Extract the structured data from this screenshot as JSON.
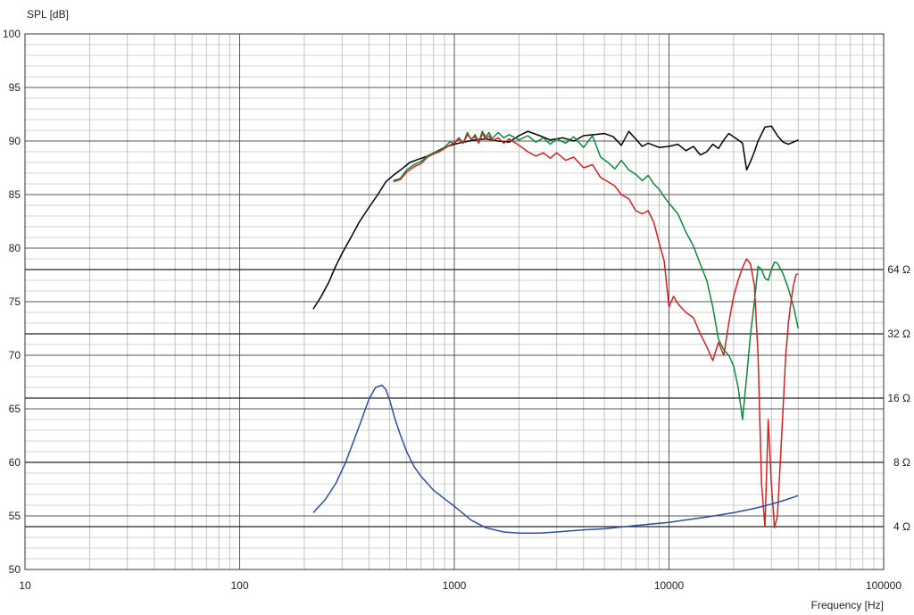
{
  "chart_data": {
    "type": "line",
    "ylabel": "SPL [dB]",
    "xlabel": "Frequency [Hz]",
    "x_scale": "log",
    "xlim": [
      10,
      100000
    ],
    "ylim": [
      50,
      100
    ],
    "x_ticks": [
      {
        "value": 10,
        "label": "10"
      },
      {
        "value": 100,
        "label": "100"
      },
      {
        "value": 1000,
        "label": "1000"
      },
      {
        "value": 10000,
        "label": "10000"
      },
      {
        "value": 100000,
        "label": "100000"
      }
    ],
    "y_ticks": [
      {
        "value": 50,
        "label": "50"
      },
      {
        "value": 55,
        "label": "55"
      },
      {
        "value": 60,
        "label": "60"
      },
      {
        "value": 65,
        "label": "65"
      },
      {
        "value": 70,
        "label": "70"
      },
      {
        "value": 75,
        "label": "75"
      },
      {
        "value": 80,
        "label": "80"
      },
      {
        "value": 85,
        "label": "85"
      },
      {
        "value": 90,
        "label": "90"
      },
      {
        "value": 95,
        "label": "95"
      },
      {
        "value": 100,
        "label": "100"
      }
    ],
    "impedance_scale": {
      "ticks": [
        {
          "value": 4,
          "label": "4 Ω"
        },
        {
          "value": 8,
          "label": "8 Ω"
        },
        {
          "value": 16,
          "label": "16 Ω"
        },
        {
          "value": 32,
          "label": "32 Ω"
        },
        {
          "value": 64,
          "label": "64 Ω"
        }
      ],
      "spl_at_4_ohm": 54,
      "db_per_octave": 6
    },
    "grid": true,
    "series": [
      {
        "color": "#000000",
        "x": [
          220,
          240,
          260,
          280,
          300,
          330,
          360,
          400,
          440,
          480,
          520,
          570,
          620,
          680,
          750,
          820,
          900,
          1000,
          1100,
          1250,
          1400,
          1600,
          1800,
          2000,
          2200,
          2500,
          2800,
          3200,
          3600,
          4000,
          4500,
          5000,
          5500,
          6000,
          6500,
          7000,
          7500,
          8000,
          9000,
          10000,
          11000,
          12000,
          13000,
          14000,
          15000,
          16000,
          17000,
          18000,
          19000,
          20000,
          21000,
          22000,
          23000,
          24000,
          25000,
          26000,
          28000,
          30000,
          32000,
          34000,
          36000,
          38000,
          40000
        ],
        "y": [
          74.3,
          75.5,
          76.8,
          78.3,
          79.5,
          81.0,
          82.4,
          83.8,
          85.0,
          86.2,
          86.8,
          87.4,
          88.0,
          88.3,
          88.6,
          89.0,
          89.4,
          89.7,
          89.9,
          90.1,
          90.2,
          90.0,
          89.9,
          90.5,
          90.9,
          90.5,
          90.1,
          90.3,
          90.0,
          90.5,
          90.6,
          90.7,
          90.4,
          89.6,
          90.9,
          90.2,
          89.5,
          89.8,
          89.4,
          89.5,
          89.7,
          89.1,
          89.5,
          88.7,
          89.0,
          89.7,
          89.3,
          90.1,
          90.7,
          90.4,
          90.1,
          89.8,
          87.3,
          88.1,
          89.0,
          90.0,
          91.3,
          91.4,
          90.5,
          89.9,
          89.7,
          89.9,
          90.1
        ]
      },
      {
        "color": "#0a8a3a",
        "x": [
          520,
          560,
          600,
          650,
          700,
          750,
          800,
          850,
          900,
          950,
          1000,
          1050,
          1100,
          1150,
          1200,
          1250,
          1300,
          1350,
          1400,
          1450,
          1500,
          1600,
          1700,
          1800,
          2000,
          2200,
          2400,
          2600,
          2800,
          3000,
          3300,
          3600,
          4000,
          4400,
          4800,
          5200,
          5600,
          6000,
          6500,
          7000,
          7500,
          8000,
          8500,
          9000,
          9500,
          10000,
          11000,
          12000,
          13000,
          14000,
          15000,
          16000,
          17000,
          18000,
          19000,
          20000,
          21000,
          22000,
          23000,
          24000,
          25000,
          26000,
          27000,
          28000,
          29000,
          30000,
          31000,
          32000,
          34000,
          36000,
          38000,
          40000
        ],
        "y": [
          86.3,
          86.5,
          87.3,
          87.8,
          88.1,
          88.6,
          88.9,
          89.1,
          89.4,
          89.9,
          89.8,
          90.3,
          89.8,
          90.8,
          90.1,
          90.6,
          89.9,
          90.9,
          90.4,
          90.8,
          90.2,
          90.8,
          90.3,
          90.6,
          90.1,
          90.5,
          89.9,
          90.3,
          89.7,
          90.2,
          89.8,
          90.4,
          89.4,
          90.5,
          88.5,
          88.0,
          87.4,
          88.2,
          87.3,
          86.9,
          86.3,
          86.8,
          86.0,
          85.5,
          84.8,
          84.2,
          83.2,
          81.5,
          80.2,
          78.5,
          77.0,
          74.5,
          71.5,
          70.5,
          70.0,
          69.0,
          67.0,
          64.0,
          68.0,
          72.0,
          75.0,
          78.3,
          78.0,
          77.2,
          77.0,
          78.0,
          78.7,
          78.6,
          77.6,
          76.2,
          74.6,
          72.5
        ]
      },
      {
        "color": "#d62020",
        "x": [
          520,
          560,
          600,
          650,
          700,
          750,
          800,
          850,
          900,
          950,
          1000,
          1050,
          1100,
          1150,
          1200,
          1250,
          1300,
          1350,
          1400,
          1450,
          1500,
          1600,
          1700,
          1800,
          2000,
          2200,
          2400,
          2600,
          2800,
          3000,
          3300,
          3600,
          4000,
          4400,
          4800,
          5200,
          5600,
          6000,
          6500,
          7000,
          7500,
          8000,
          8500,
          9000,
          9500,
          10000,
          10500,
          11000,
          12000,
          13000,
          14000,
          15000,
          16000,
          17000,
          18000,
          19000,
          20000,
          21000,
          22000,
          23000,
          24000,
          25000,
          26000,
          27000,
          28000,
          29000,
          30000,
          31000,
          32000,
          33000,
          34000,
          35000,
          36000,
          37000,
          38000,
          39000,
          40000
        ],
        "y": [
          86.2,
          86.4,
          87.1,
          87.6,
          87.9,
          88.5,
          88.8,
          89.0,
          89.3,
          89.6,
          89.8,
          90.2,
          89.8,
          90.6,
          90.2,
          90.4,
          89.8,
          90.7,
          90.2,
          90.5,
          90.0,
          90.3,
          89.8,
          90.2,
          89.6,
          89.0,
          88.6,
          88.9,
          88.4,
          88.9,
          88.2,
          88.5,
          87.5,
          87.8,
          86.6,
          86.2,
          85.8,
          85.0,
          84.6,
          83.5,
          83.2,
          83.5,
          82.4,
          80.5,
          78.8,
          74.5,
          75.5,
          74.8,
          74.0,
          73.5,
          72.0,
          70.8,
          69.5,
          71.2,
          70.0,
          73.0,
          75.5,
          77.0,
          78.2,
          79.0,
          78.5,
          76.5,
          70.0,
          58.0,
          54.0,
          64.0,
          58.0,
          53.9,
          55.0,
          60.0,
          65.0,
          70.0,
          73.0,
          75.0,
          76.5,
          77.5,
          77.6
        ]
      },
      {
        "color": "#2b4ea2",
        "x": [
          220,
          250,
          280,
          310,
          340,
          370,
          400,
          430,
          460,
          480,
          500,
          530,
          560,
          600,
          650,
          700,
          800,
          900,
          1000,
          1200,
          1400,
          1700,
          2000,
          2500,
          3000,
          4000,
          5000,
          7000,
          10000,
          15000,
          20000,
          25000,
          30000,
          35000,
          40000
        ],
        "y": [
          55.3,
          56.5,
          58.0,
          59.9,
          62.0,
          64.0,
          65.9,
          67.0,
          67.2,
          66.8,
          65.8,
          64.0,
          62.6,
          61.0,
          59.6,
          58.7,
          57.4,
          56.6,
          55.9,
          54.6,
          53.9,
          53.5,
          53.4,
          53.4,
          53.5,
          53.7,
          53.8,
          54.1,
          54.4,
          54.9,
          55.3,
          55.7,
          56.1,
          56.5,
          56.9
        ]
      }
    ]
  }
}
